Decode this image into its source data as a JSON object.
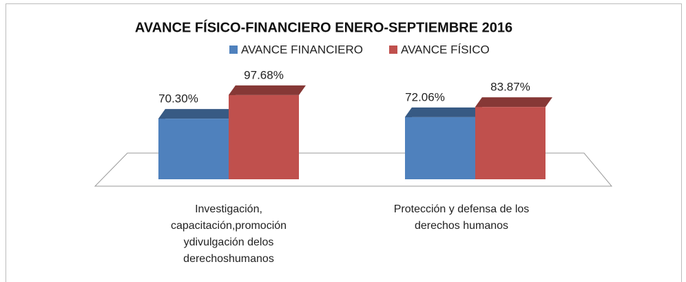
{
  "chart_data": {
    "type": "bar3d",
    "title": "AVANCE FÍSICO-FINANCIERO ENERO-SEPTIEMBRE  2016",
    "categories": [
      "Investigación, capacitación,promoción ydivulgación delos derechoshumanos",
      "Protección y defensa de los derechos humanos"
    ],
    "series": [
      {
        "name": "AVANCE FINANCIERO",
        "color": "#4f81bd",
        "values": [
          70.3,
          72.06
        ],
        "value_labels": [
          "70.30%",
          "72.06%"
        ]
      },
      {
        "name": "AVANCE FÍSICO",
        "color": "#c0504d",
        "values": [
          97.68,
          83.87
        ],
        "value_labels": [
          "97.68%",
          "83.87%"
        ]
      }
    ]
  }
}
